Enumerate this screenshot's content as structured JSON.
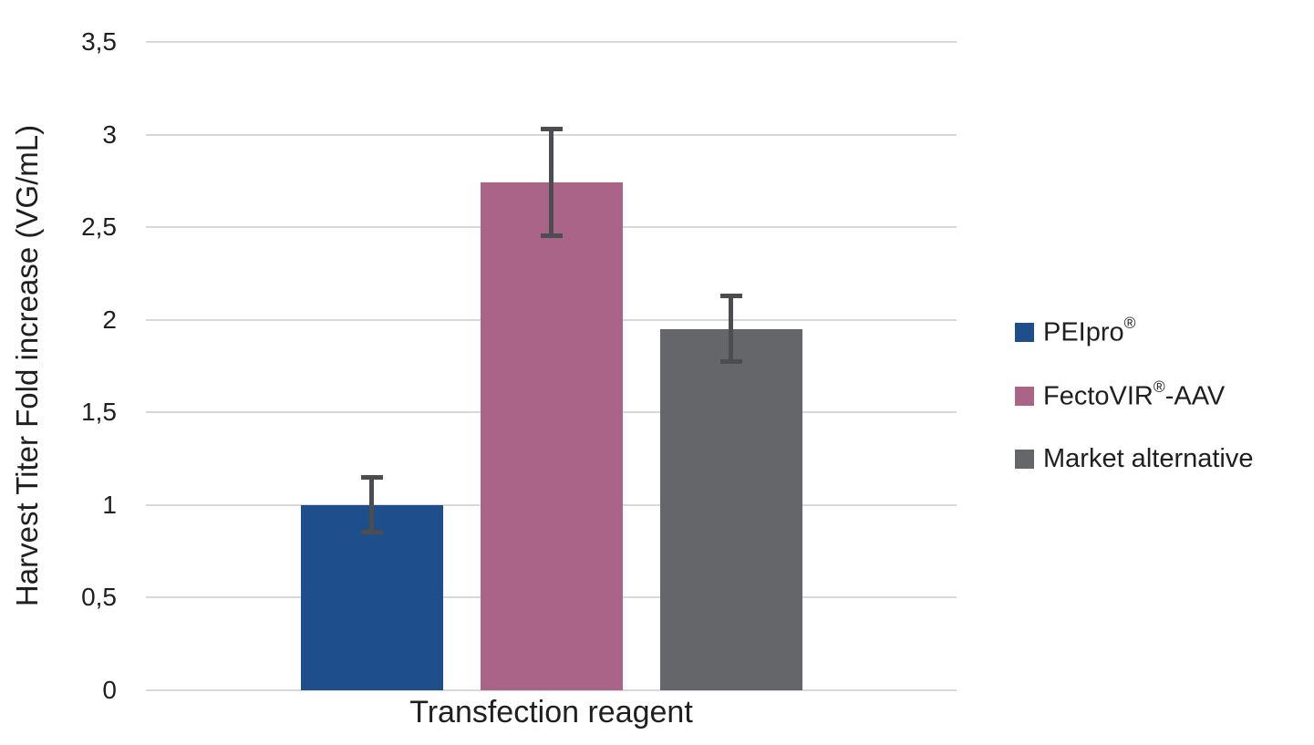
{
  "chart_data": {
    "type": "bar",
    "title": "",
    "xlabel": "Transfection reagent",
    "ylabel": "Harvest Titer Fold increase (VG/mL)",
    "categories": [
      "Transfection reagent"
    ],
    "series": [
      {
        "name": "PEIpro®",
        "value": 1.0,
        "error": 0.16,
        "color": "#1f4e8c"
      },
      {
        "name": "FectoVIR®-AAV",
        "value": 2.74,
        "error": 0.3,
        "color": "#aa6488"
      },
      {
        "name": "Market alternative",
        "value": 1.95,
        "error": 0.19,
        "color": "#65666a"
      }
    ],
    "ylim": [
      0,
      3.5
    ],
    "ytick_step": 0.5,
    "yticks": {
      "values": [
        0,
        0.5,
        1,
        1.5,
        2,
        2.5,
        3,
        3.5
      ],
      "labels": [
        "0",
        "0,5",
        "1",
        "1,5",
        "2",
        "2,5",
        "3",
        "3,5"
      ]
    },
    "decimal_separator": ",",
    "grid": true,
    "legend_position": "right"
  },
  "colors": {
    "gridline": "#d8d8d8",
    "error_bar": "#4c4d51",
    "text": "#1f1f1f",
    "background": "#ffffff"
  }
}
